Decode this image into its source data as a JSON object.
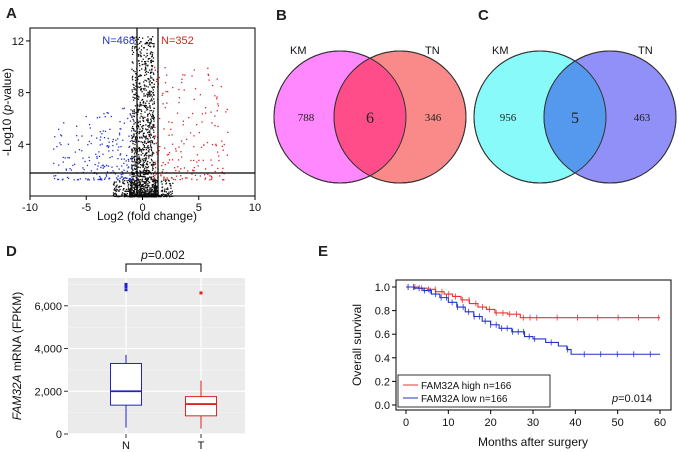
{
  "panels": {
    "A": {
      "label": "A",
      "left_count": "N=468",
      "right_count": "N=352",
      "xlabel": "Log2 (fold change)",
      "ylabel_prefix": "-Log10 (",
      "ylabel_italic": "p",
      "ylabel_suffix": "-value)",
      "colors": {
        "down": "#2233cc",
        "up": "#dd2222",
        "ns": "#111111"
      }
    },
    "B": {
      "label": "B",
      "set1": "KM",
      "set2": "TN",
      "left": "788",
      "overlap": "6",
      "right": "346",
      "colors": {
        "left": "#ff88ff",
        "overlap": "#ff4d8a",
        "right": "#fa8a8a"
      }
    },
    "C": {
      "label": "C",
      "set1": "KM",
      "set2": "TN",
      "left": "956",
      "overlap": "5",
      "right": "463",
      "colors": {
        "left": "#88fafa",
        "overlap": "#5599ee",
        "right": "#9090f8"
      }
    },
    "D": {
      "label": "D",
      "pvalue_prefix": "p",
      "pvalue_suffix": "=0.002",
      "ylabel_italic": "FAM32A",
      "ylabel_suffix": " mRNA (FPKM)",
      "colors": {
        "N": "#2222cc",
        "T": "#dd2222",
        "panel_bg": "#ebebeb"
      }
    },
    "E": {
      "label": "E",
      "xlabel": "Months after surgery",
      "ylabel": "Overall survival",
      "pvalue_prefix": "p",
      "pvalue_suffix": "=0.014",
      "legend": [
        "FAM32A high n=166",
        "FAM32A low n=166"
      ],
      "colors": {
        "high": "#ee3333",
        "low": "#2233cc"
      }
    }
  },
  "chart_data": [
    {
      "id": "A",
      "type": "scatter",
      "title": "",
      "xlabel": "Log2 (fold change)",
      "ylabel": "-Log10 (p-value)",
      "xlim": [
        -10,
        10
      ],
      "ylim": [
        0,
        13
      ],
      "xticks": [
        "-10",
        "-5",
        "0",
        "5",
        "10"
      ],
      "yticks": [
        "4",
        "8",
        "12"
      ],
      "thresholds": {
        "x": [
          -1,
          1
        ],
        "y": 1.3
      },
      "series": [
        {
          "name": "down",
          "count": 468
        },
        {
          "name": "up",
          "count": 352
        }
      ]
    },
    {
      "id": "D",
      "type": "box",
      "categories": [
        "N",
        "T"
      ],
      "ylim": [
        0,
        7300
      ],
      "yticks": [
        "0",
        "2,000",
        "4,000",
        "6,000"
      ],
      "ylabel": "FAM32A mRNA (FPKM)",
      "boxes": [
        {
          "name": "N",
          "min": 300,
          "q1": 1350,
          "median": 2000,
          "q3": 3300,
          "max": 3700,
          "outliers": [
            6750,
            6900,
            7000
          ]
        },
        {
          "name": "T",
          "min": 250,
          "q1": 850,
          "median": 1400,
          "q3": 1750,
          "max": 2500,
          "outliers": [
            6600
          ]
        }
      ],
      "annotation": "p=0.002"
    },
    {
      "id": "E",
      "type": "line",
      "title": "",
      "xlabel": "Months after surgery",
      "ylabel": "Overall survival",
      "xlim": [
        0,
        60
      ],
      "ylim": [
        0,
        1.0
      ],
      "xticks": [
        "0",
        "10",
        "20",
        "30",
        "40",
        "50",
        "60"
      ],
      "yticks": [
        "0.0",
        "0.2",
        "0.4",
        "0.6",
        "0.8",
        "1.0"
      ],
      "series": [
        {
          "name": "FAM32A high n=166",
          "x": [
            0,
            3,
            5,
            7,
            9,
            11,
            13,
            15,
            17,
            19,
            21,
            24,
            27,
            60
          ],
          "y": [
            1.0,
            0.99,
            0.98,
            0.96,
            0.94,
            0.92,
            0.89,
            0.86,
            0.83,
            0.81,
            0.78,
            0.77,
            0.74,
            0.74
          ]
        },
        {
          "name": "FAM32A low n=166",
          "x": [
            0,
            2,
            4,
            6,
            8,
            10,
            12,
            14,
            16,
            18,
            20,
            22,
            25,
            28,
            30,
            33,
            36,
            38,
            39,
            60
          ],
          "y": [
            1.0,
            0.99,
            0.97,
            0.94,
            0.91,
            0.87,
            0.83,
            0.79,
            0.75,
            0.71,
            0.68,
            0.65,
            0.62,
            0.58,
            0.56,
            0.53,
            0.5,
            0.47,
            0.43,
            0.43
          ]
        }
      ],
      "annotation": "p=0.014"
    }
  ]
}
